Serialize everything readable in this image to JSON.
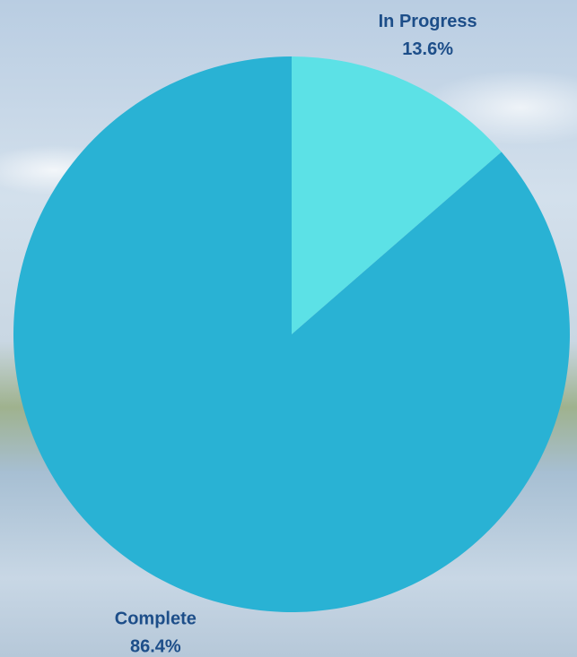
{
  "chart_data": {
    "type": "pie",
    "categories": [
      "In Progress",
      "Complete"
    ],
    "values": [
      13.6,
      86.4
    ],
    "value_labels": [
      "13.6%",
      "86.4%"
    ],
    "colors": [
      "#5ce1e6",
      "#29b2d4"
    ]
  }
}
